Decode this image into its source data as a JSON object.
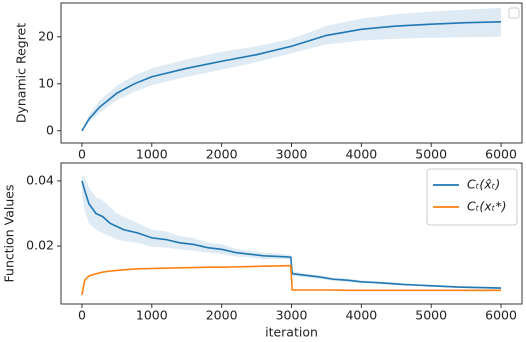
{
  "chart_data": [
    {
      "type": "line",
      "ylabel": "Dynamic Regret",
      "x": [
        0,
        100,
        250,
        500,
        750,
        1000,
        1500,
        2000,
        2500,
        3000,
        3500,
        4000,
        4500,
        5000,
        5500,
        6000
      ],
      "series": [
        {
          "color": "#1f77b4",
          "values": [
            0,
            2.5,
            5,
            8,
            10,
            11.5,
            13.3,
            14.8,
            16.2,
            18,
            20.3,
            21.6,
            22.3,
            22.7,
            23,
            23.2
          ],
          "lower": [
            0,
            1.8,
            3.8,
            6.5,
            8.3,
            9.7,
            11.5,
            13,
            14.6,
            16.5,
            18.4,
            19.2,
            19.6,
            19.8,
            19.9,
            20
          ],
          "upper": [
            0,
            3.3,
            6.4,
            9.6,
            11.8,
            13.3,
            15.2,
            16.8,
            18,
            19.6,
            22.3,
            23.9,
            24.8,
            25.4,
            25.8,
            26.2
          ]
        }
      ],
      "xlim": [
        -300,
        6300
      ],
      "xticks": [
        0,
        1000,
        2000,
        3000,
        4000,
        5000,
        6000
      ],
      "ylim": [
        -2.6,
        27.2
      ],
      "yticks": [
        0,
        10,
        20
      ]
    },
    {
      "type": "line",
      "ylabel": "Function Values",
      "xlabel": "iteration",
      "legend": "upper right",
      "x": [
        0,
        40,
        100,
        200,
        300,
        400,
        500,
        600,
        800,
        1000,
        1200,
        1400,
        1600,
        1800,
        2000,
        2200,
        2400,
        2600,
        2800,
        2990,
        3010,
        3200,
        3400,
        3600,
        3800,
        4000,
        4200,
        4400,
        4600,
        4800,
        5000,
        5200,
        5400,
        5600,
        5800,
        6000
      ],
      "series": [
        {
          "name": "Cₜ(x̂ₜ)",
          "color": "#1f77b4",
          "values": [
            0.04,
            0.037,
            0.033,
            0.03,
            0.029,
            0.027,
            0.026,
            0.025,
            0.024,
            0.0225,
            0.022,
            0.021,
            0.0205,
            0.0195,
            0.019,
            0.018,
            0.0175,
            0.017,
            0.0168,
            0.0166,
            0.0115,
            0.011,
            0.0105,
            0.0098,
            0.0095,
            0.009,
            0.0088,
            0.0085,
            0.0082,
            0.008,
            0.0078,
            0.0076,
            0.0074,
            0.0073,
            0.0072,
            0.0071
          ],
          "lower": [
            0.036,
            0.031,
            0.027,
            0.025,
            0.024,
            0.023,
            0.022,
            0.0215,
            0.021,
            0.0198,
            0.0195,
            0.019,
            0.0185,
            0.018,
            0.0175,
            0.0168,
            0.0165,
            0.016,
            0.016,
            0.016,
            0.0108,
            0.0104,
            0.0099,
            0.0093,
            0.009,
            0.0086,
            0.0084,
            0.0081,
            0.0079,
            0.0077,
            0.0075,
            0.0073,
            0.0071,
            0.007,
            0.0069,
            0.0068
          ],
          "upper": [
            0.042,
            0.041,
            0.038,
            0.035,
            0.034,
            0.032,
            0.03,
            0.029,
            0.027,
            0.025,
            0.0245,
            0.023,
            0.0225,
            0.021,
            0.0205,
            0.0192,
            0.0185,
            0.018,
            0.0177,
            0.0172,
            0.0122,
            0.0116,
            0.011,
            0.0103,
            0.01,
            0.0094,
            0.0092,
            0.0089,
            0.0085,
            0.0083,
            0.0081,
            0.0079,
            0.0077,
            0.0076,
            0.0075,
            0.0074
          ]
        },
        {
          "name": "Cₜ(xₜ*)",
          "color": "#ff7f0e",
          "values": [
            0.005,
            0.0095,
            0.0108,
            0.0115,
            0.012,
            0.0123,
            0.0125,
            0.0127,
            0.013,
            0.0131,
            0.0132,
            0.0133,
            0.0134,
            0.0135,
            0.0135,
            0.0136,
            0.0137,
            0.0138,
            0.0139,
            0.014,
            0.0065,
            0.0065,
            0.0065,
            0.0065,
            0.0064,
            0.0064,
            0.0064,
            0.0064,
            0.0064,
            0.0064,
            0.0064,
            0.0064,
            0.0064,
            0.0064,
            0.0064,
            0.0064
          ]
        }
      ],
      "xlim": [
        -300,
        6300
      ],
      "xticks": [
        0,
        1000,
        2000,
        3000,
        4000,
        5000,
        6000
      ],
      "ylim": [
        0.0022,
        0.0455
      ],
      "yticks": [
        0.02,
        0.04
      ]
    }
  ]
}
